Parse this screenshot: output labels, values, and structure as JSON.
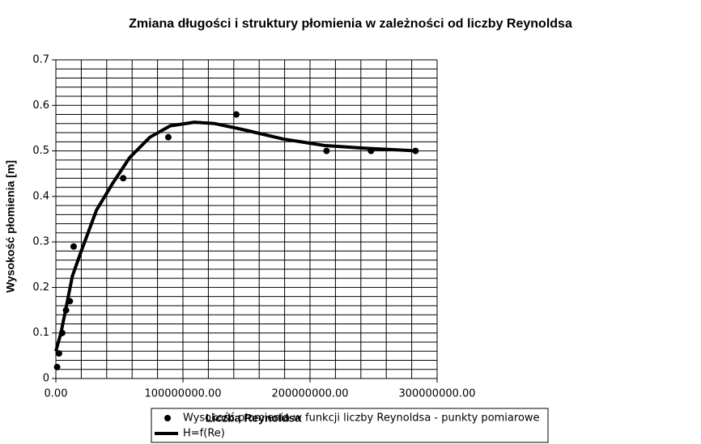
{
  "chart_data": {
    "type": "scatter",
    "title": "Zmiana długości i struktury płomienia w zależności od liczby Reynoldsa",
    "x_label": "Liczba Reynoldsa",
    "y_label": "Wysokość płomienia [m]",
    "xlim": [
      0,
      300000000
    ],
    "ylim": [
      0,
      0.7
    ],
    "xticks": [
      {
        "value": 0,
        "label": "0.00"
      },
      {
        "value": 100000000,
        "label": "100000000.00"
      },
      {
        "value": 200000000,
        "label": "200000000.00"
      },
      {
        "value": 300000000,
        "label": "300000000.00"
      }
    ],
    "yticks": [
      0,
      0.1,
      0.2,
      0.3,
      0.4,
      0.5,
      0.6,
      0.7
    ],
    "x_grid": [
      20000000,
      40000000,
      60000000,
      80000000,
      100000000,
      120000000,
      140000000,
      160000000,
      180000000,
      200000000,
      220000000,
      240000000,
      260000000,
      280000000,
      300000000
    ],
    "y_grid": [
      0.02,
      0.04,
      0.06,
      0.08,
      0.1,
      0.12,
      0.14,
      0.16,
      0.18,
      0.2,
      0.22,
      0.24,
      0.26,
      0.28,
      0.3,
      0.32,
      0.34,
      0.36,
      0.38,
      0.4,
      0.42,
      0.44,
      0.46,
      0.48,
      0.5,
      0.52,
      0.54,
      0.56,
      0.58,
      0.6,
      0.62,
      0.64,
      0.66,
      0.68,
      0.7
    ],
    "series": [
      {
        "name": "Wysokość płomienia w funkcji liczby Reynoldsa - punkty pomiarowe",
        "kind": "points",
        "color": "#000000",
        "x": [
          1000000,
          2500000,
          5000000,
          8000000,
          11000000,
          14000000,
          53000000,
          88500000,
          142000000,
          213000000,
          248000000,
          283000000
        ],
        "values": [
          0.025,
          0.055,
          0.1,
          0.15,
          0.17,
          0.29,
          0.44,
          0.53,
          0.58,
          0.5,
          0.5,
          0.5
        ]
      },
      {
        "name": "H=f(Re)",
        "kind": "line",
        "color": "#000000",
        "x": [
          0,
          4000000,
          8000000,
          13000000,
          20000000,
          32000000,
          45000000,
          58000000,
          74000000,
          90000000,
          109000000,
          125000000,
          147000000,
          179000000,
          211000000,
          243000000,
          284000000
        ],
        "values": [
          0.06,
          0.1,
          0.155,
          0.225,
          0.28,
          0.37,
          0.43,
          0.485,
          0.53,
          0.555,
          0.563,
          0.56,
          0.547,
          0.526,
          0.512,
          0.506,
          0.5
        ]
      }
    ]
  }
}
